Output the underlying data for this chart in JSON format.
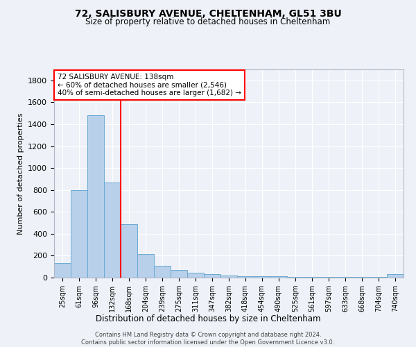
{
  "title1": "72, SALISBURY AVENUE, CHELTENHAM, GL51 3BU",
  "title2": "Size of property relative to detached houses in Cheltenham",
  "xlabel": "Distribution of detached houses by size in Cheltenham",
  "ylabel": "Number of detached properties",
  "categories": [
    "25sqm",
    "61sqm",
    "96sqm",
    "132sqm",
    "168sqm",
    "204sqm",
    "239sqm",
    "275sqm",
    "311sqm",
    "347sqm",
    "382sqm",
    "418sqm",
    "454sqm",
    "490sqm",
    "525sqm",
    "561sqm",
    "597sqm",
    "633sqm",
    "668sqm",
    "704sqm",
    "740sqm"
  ],
  "values": [
    130,
    800,
    1480,
    870,
    490,
    215,
    105,
    70,
    45,
    30,
    20,
    15,
    12,
    10,
    8,
    7,
    6,
    5,
    4,
    4,
    30
  ],
  "bar_color": "#b8d0ea",
  "bar_edge_color": "#6aaad4",
  "red_line_x": 3.5,
  "annotation_box_text": "72 SALISBURY AVENUE: 138sqm\n← 60% of detached houses are smaller (2,546)\n40% of semi-detached houses are larger (1,682) →",
  "footnote": "Contains HM Land Registry data © Crown copyright and database right 2024.\nContains public sector information licensed under the Open Government Licence v3.0.",
  "ylim": [
    0,
    1900
  ],
  "bg_color": "#eef2f8",
  "grid_color": "#ffffff"
}
